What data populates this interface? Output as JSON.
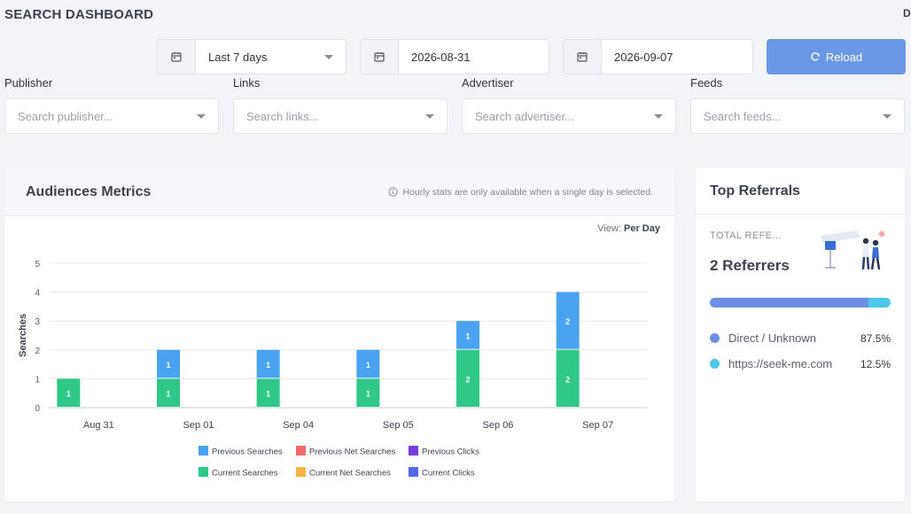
{
  "header": {
    "title": "SEARCH DASHBOARD",
    "edge_letter": "D"
  },
  "controls": {
    "range_icon": "calendar-icon",
    "range_value": "Last 7 days",
    "start_date": "2026-08-31",
    "end_date": "2026-09-07",
    "reload_label": "Reload",
    "reload_icon": "refresh-icon",
    "reload_color": "#6a97e6"
  },
  "filters": [
    {
      "label": "Publisher",
      "placeholder": "Search publisher..."
    },
    {
      "label": "Links",
      "placeholder": "Search links..."
    },
    {
      "label": "Advertiser",
      "placeholder": "Search advertiser..."
    },
    {
      "label": "Feeds",
      "placeholder": "Search feeds..."
    }
  ],
  "metrics": {
    "title": "Audiences Metrics",
    "note": "Hourly stats are only available when a single day is selected.",
    "view_label": "View:",
    "view_value": "Per Day"
  },
  "chart_data": {
    "type": "bar",
    "stacked": true,
    "categories": [
      "Aug 31",
      "Sep 01",
      "Sep 04",
      "Sep 05",
      "Sep 06",
      "Sep 07"
    ],
    "ylabel": "Searches",
    "xlabel": "",
    "ylim": [
      0,
      5
    ],
    "yticks": [
      0,
      1,
      2,
      3,
      4,
      5
    ],
    "grid": true,
    "legend_position": "bottom",
    "series": [
      {
        "name": "Current Searches",
        "color": "#2fc889",
        "values": [
          1,
          1,
          1,
          1,
          2,
          2
        ]
      },
      {
        "name": "Previous Searches",
        "color": "#4aa3f0",
        "values": [
          0,
          1,
          1,
          1,
          1,
          2
        ]
      }
    ],
    "legend": [
      {
        "name": "Previous Searches",
        "color": "#4aa3f0"
      },
      {
        "name": "Previous Net Searches",
        "color": "#f26b6b"
      },
      {
        "name": "Previous Clicks",
        "color": "#7b3fd8"
      },
      {
        "name": "Current Searches",
        "color": "#2fc889"
      },
      {
        "name": "Current Net Searches",
        "color": "#f5b642"
      },
      {
        "name": "Current Clicks",
        "color": "#5468e8"
      }
    ]
  },
  "referrals": {
    "title": "Top Referrals",
    "total_label": "TOTAL REFE...",
    "total_value": "2 Referrers",
    "items": [
      {
        "name": "Direct / Unknown",
        "percent_label": "87.5%",
        "share": 87.5,
        "color": "#6c8fe3"
      },
      {
        "name": "https://seek-me.com",
        "percent_label": "12.5%",
        "share": 12.5,
        "color": "#4cc7e8"
      }
    ]
  }
}
